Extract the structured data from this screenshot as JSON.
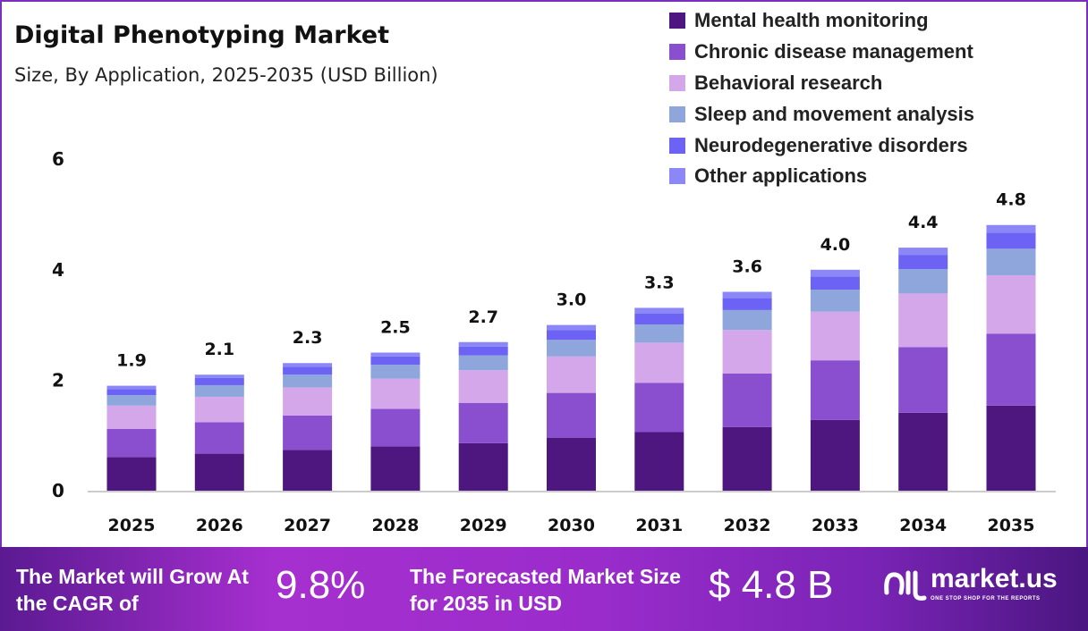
{
  "chart_data": {
    "type": "bar",
    "stacked": true,
    "title": "Digital Phenotyping Market",
    "subtitle": "Size, By Application, 2025-2035 (USD Billion)",
    "categories": [
      "2025",
      "2026",
      "2027",
      "2028",
      "2029",
      "2030",
      "2031",
      "2032",
      "2033",
      "2034",
      "2035"
    ],
    "totals_labels": [
      "1.9",
      "2.1",
      "2.3",
      "2.5",
      "2.7",
      "3.0",
      "3.3",
      "3.6",
      "4.0",
      "4.4",
      "4.8"
    ],
    "yticks": [
      "0",
      "2",
      "4",
      "6"
    ],
    "ylim": [
      0,
      6
    ],
    "grid": false,
    "legend_position": "top-right",
    "series": [
      {
        "name": "Mental health monitoring",
        "color": "#4e1780",
        "values": [
          0.61,
          0.67,
          0.74,
          0.8,
          0.86,
          0.96,
          1.06,
          1.15,
          1.28,
          1.41,
          1.54
        ]
      },
      {
        "name": "Chronic disease management",
        "color": "#8a4fcf",
        "values": [
          0.51,
          0.57,
          0.62,
          0.68,
          0.73,
          0.81,
          0.89,
          0.97,
          1.08,
          1.19,
          1.3
        ]
      },
      {
        "name": "Behavioral research",
        "color": "#d4a6ea",
        "values": [
          0.42,
          0.46,
          0.51,
          0.55,
          0.59,
          0.66,
          0.73,
          0.79,
          0.88,
          0.97,
          1.06
        ]
      },
      {
        "name": "Sleep and movement analysis",
        "color": "#8ea6dc",
        "values": [
          0.19,
          0.21,
          0.23,
          0.25,
          0.27,
          0.3,
          0.33,
          0.36,
          0.4,
          0.44,
          0.48
        ]
      },
      {
        "name": "Neurodegenerative disorders",
        "color": "#6c63f5",
        "values": [
          0.11,
          0.13,
          0.14,
          0.15,
          0.16,
          0.18,
          0.2,
          0.22,
          0.24,
          0.26,
          0.29
        ]
      },
      {
        "name": "Other applications",
        "color": "#8b87f7",
        "values": [
          0.06,
          0.06,
          0.07,
          0.07,
          0.08,
          0.09,
          0.1,
          0.11,
          0.12,
          0.13,
          0.14
        ]
      }
    ]
  },
  "banner": {
    "cagr_text": "The Market will Grow At the CAGR of",
    "cagr_value": "9.8%",
    "forecast_text": "The Forecasted Market Size for 2035 in USD",
    "forecast_value": "$ 4.8 B",
    "logo_name": "market.us",
    "logo_tagline": "ONE STOP SHOP FOR THE REPORTS"
  }
}
